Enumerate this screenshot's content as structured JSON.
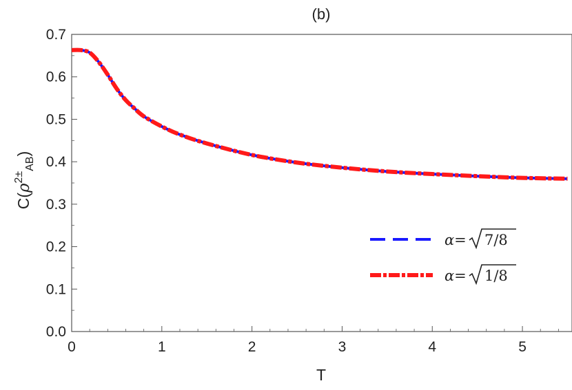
{
  "chart_data": {
    "type": "line",
    "title": "(b)",
    "xlabel": "T",
    "ylabel": "C(ρ²±AB)",
    "xlim": [
      0,
      5.55
    ],
    "ylim": [
      0,
      0.7
    ],
    "x_ticks": [
      "0",
      "1",
      "2",
      "3",
      "4",
      "5"
    ],
    "y_ticks": [
      "0.0",
      "0.1",
      "0.2",
      "0.3",
      "0.4",
      "0.5",
      "0.6",
      "0.7"
    ],
    "grid": false,
    "legend_position": "lower-right",
    "series": [
      {
        "name": "α=√7/8",
        "color": "#1a1aff",
        "style": "dashed",
        "x": [
          0,
          0.1,
          0.2,
          0.3,
          0.4,
          0.5,
          0.6,
          0.7,
          0.8,
          1.0,
          1.2,
          1.5,
          2.0,
          2.5,
          3.0,
          3.5,
          4.0,
          4.5,
          5.0,
          5.5
        ],
        "y": [
          0.663,
          0.663,
          0.657,
          0.635,
          0.605,
          0.572,
          0.545,
          0.525,
          0.507,
          0.483,
          0.464,
          0.443,
          0.416,
          0.398,
          0.386,
          0.377,
          0.371,
          0.366,
          0.362,
          0.36
        ]
      },
      {
        "name": "α=√1/8",
        "color": "#ff1a1a",
        "style": "dash-dot",
        "x": [
          0,
          0.1,
          0.2,
          0.3,
          0.4,
          0.5,
          0.6,
          0.7,
          0.8,
          1.0,
          1.2,
          1.5,
          2.0,
          2.5,
          3.0,
          3.5,
          4.0,
          4.5,
          5.0,
          5.5
        ],
        "y": [
          0.663,
          0.663,
          0.657,
          0.635,
          0.605,
          0.572,
          0.545,
          0.525,
          0.507,
          0.483,
          0.464,
          0.443,
          0.416,
          0.398,
          0.386,
          0.377,
          0.371,
          0.366,
          0.362,
          0.36
        ]
      }
    ],
    "legend": [
      {
        "prefix": "α=",
        "radicand": "7/8"
      },
      {
        "prefix": "α=",
        "radicand": "1/8"
      }
    ]
  }
}
